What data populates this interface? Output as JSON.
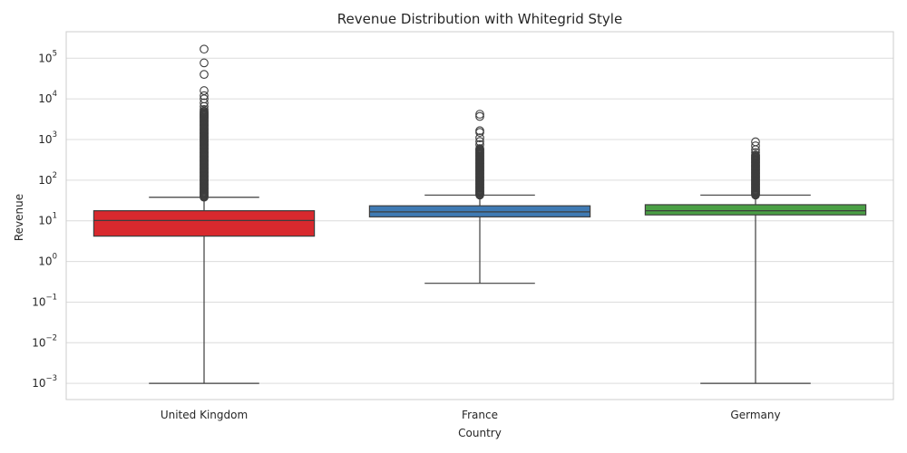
{
  "chart_data": {
    "type": "box",
    "title": "Revenue Distribution with Whitegrid Style",
    "xlabel": "Country",
    "ylabel": "Revenue",
    "yscale": "log",
    "ylim": [
      0.0004,
      450000
    ],
    "y_ticks": [
      {
        "value": 0.001,
        "base": "10",
        "exp": "−3"
      },
      {
        "value": 0.01,
        "base": "10",
        "exp": "−2"
      },
      {
        "value": 0.1,
        "base": "10",
        "exp": "−1"
      },
      {
        "value": 1,
        "base": "10",
        "exp": "0"
      },
      {
        "value": 10,
        "base": "10",
        "exp": "1"
      },
      {
        "value": 100,
        "base": "10",
        "exp": "2"
      },
      {
        "value": 1000,
        "base": "10",
        "exp": "3"
      },
      {
        "value": 10000,
        "base": "10",
        "exp": "4"
      },
      {
        "value": 100000,
        "base": "10",
        "exp": "5"
      }
    ],
    "grid": true,
    "categories": [
      "United Kingdom",
      "France",
      "Germany"
    ],
    "boxes": [
      {
        "category": "United Kingdom",
        "color": "#d8292e",
        "whisker_low": 0.001,
        "q1": 4.2,
        "median": 10.2,
        "q3": 17.7,
        "whisker_high": 38,
        "dense_outlier_range": [
          38,
          5000
        ],
        "outliers": [
          5500,
          6500,
          8000,
          10000,
          12000,
          16000,
          40000,
          77000,
          168000
        ]
      },
      {
        "category": "France",
        "color": "#3f7ab4",
        "whisker_low": 0.29,
        "q1": 12.5,
        "median": 16.6,
        "q3": 23.4,
        "whisker_high": 43,
        "dense_outlier_range": [
          43,
          600
        ],
        "outliers": [
          750,
          900,
          1100,
          1500,
          1650,
          3700,
          4200
        ]
      },
      {
        "category": "Germany",
        "color": "#4a9f45",
        "whisker_low": 0.001,
        "q1": 14.0,
        "median": 17.7,
        "q3": 24.9,
        "whisker_high": 43,
        "dense_outlier_range": [
          43,
          420
        ],
        "outliers": [
          480,
          560,
          700,
          880
        ]
      }
    ]
  }
}
